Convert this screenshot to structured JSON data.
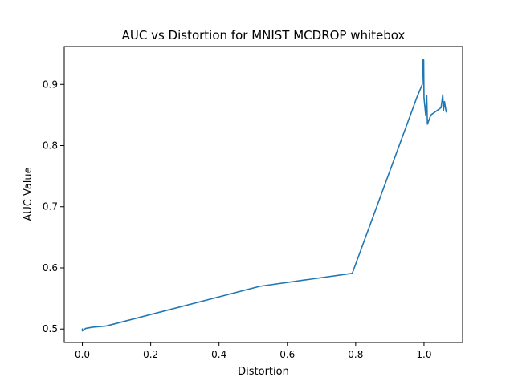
{
  "chart_data": {
    "type": "line",
    "title": "AUC vs Distortion for MNIST MCDROP whitebox",
    "xlabel": "Distortion",
    "ylabel": "AUC Value",
    "xlim": [
      -0.053,
      1.113
    ],
    "ylim": [
      0.478,
      0.962
    ],
    "xticks": [
      0.0,
      0.2,
      0.4,
      0.6,
      0.8,
      1.0
    ],
    "xtick_labels": [
      "0.0",
      "0.2",
      "0.4",
      "0.6",
      "0.8",
      "1.0"
    ],
    "yticks": [
      0.5,
      0.6,
      0.7,
      0.8,
      0.9
    ],
    "ytick_labels": [
      "0.5",
      "0.6",
      "0.7",
      "0.8",
      "0.9"
    ],
    "grid": false,
    "legend": false,
    "colors": {
      "line": "#1f77b4",
      "axes": "#000000",
      "background": "#ffffff"
    },
    "series": [
      {
        "x": [
          0.0,
          0.0,
          0.01,
          0.03,
          0.05,
          0.07,
          0.52,
          0.79,
          0.98,
          0.995,
          0.997,
          0.999,
          1.0,
          1.005,
          1.008,
          1.01,
          1.02,
          1.04,
          1.05,
          1.055,
          1.057,
          1.06,
          1.065
        ],
        "y": [
          0.5,
          0.497,
          0.501,
          0.503,
          0.504,
          0.505,
          0.57,
          0.591,
          0.88,
          0.9,
          0.94,
          0.94,
          0.878,
          0.85,
          0.882,
          0.835,
          0.85,
          0.858,
          0.862,
          0.883,
          0.857,
          0.872,
          0.855
        ]
      }
    ]
  }
}
